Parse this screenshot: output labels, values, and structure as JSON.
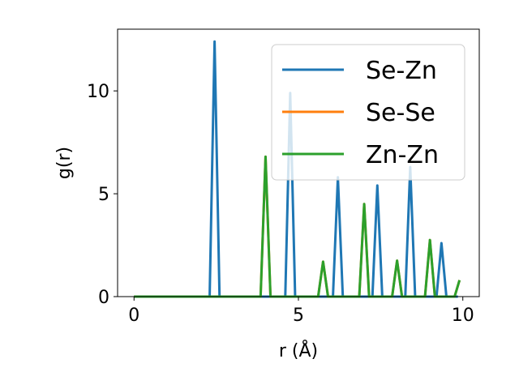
{
  "chart_data": {
    "type": "line",
    "xlabel": "r (Å)",
    "ylabel": "g(r)",
    "xlim": [
      -0.5,
      10.5
    ],
    "ylim": [
      0,
      13
    ],
    "xticks": [
      0,
      5,
      10
    ],
    "yticks": [
      0,
      5,
      10
    ],
    "xtick_labels": [
      "0",
      "5",
      "10"
    ],
    "ytick_labels": [
      "0",
      "5",
      "10"
    ],
    "grid": false,
    "legend_position": "upper right",
    "series": [
      {
        "name": "Se-Zn",
        "color": "#1f77b4",
        "x": [
          0,
          2.3,
          2.45,
          2.6,
          4.6,
          4.75,
          4.9,
          6.05,
          6.2,
          6.35,
          7.25,
          7.4,
          7.55,
          8.25,
          8.4,
          8.55,
          9.2,
          9.35,
          9.5,
          9.85
        ],
        "y": [
          0,
          0,
          12.4,
          0,
          0,
          9.9,
          0,
          0,
          5.8,
          0,
          0,
          5.4,
          0,
          0,
          6.3,
          0,
          0,
          2.6,
          0,
          0
        ]
      },
      {
        "name": "Se-Se",
        "color": "#ff7f0e",
        "x": [
          0,
          3.85,
          4.0,
          4.15,
          5.6,
          5.75,
          5.9,
          6.85,
          7.0,
          7.15,
          7.85,
          8.0,
          8.15,
          8.85,
          9.0,
          9.15,
          9.75,
          9.9
        ],
        "y": [
          0,
          0,
          6.8,
          0,
          0,
          1.7,
          0,
          0,
          4.5,
          0,
          0,
          1.75,
          0,
          0,
          2.75,
          0,
          0,
          0.8
        ]
      },
      {
        "name": "Zn-Zn",
        "color": "#2ca02c",
        "x": [
          0,
          3.85,
          4.0,
          4.15,
          5.6,
          5.75,
          5.9,
          6.85,
          7.0,
          7.15,
          7.85,
          8.0,
          8.15,
          8.85,
          9.0,
          9.15,
          9.75,
          9.9
        ],
        "y": [
          0,
          0,
          6.8,
          0,
          0,
          1.7,
          0,
          0,
          4.5,
          0,
          0,
          1.75,
          0,
          0,
          2.75,
          0,
          0,
          0.8
        ]
      }
    ]
  }
}
